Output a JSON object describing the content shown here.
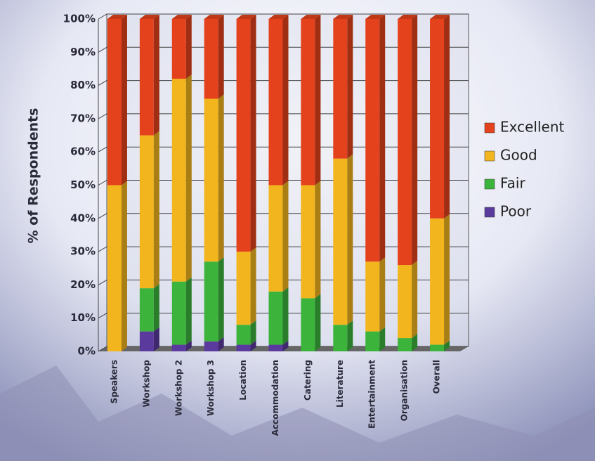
{
  "chart_data": {
    "type": "stacked_bar",
    "y_label": "% of Respondents",
    "categories": [
      "Speakers",
      "Workshop",
      "Workshop 2",
      "Workshop 3",
      "Location",
      "Accommodation",
      "Catering",
      "Literature",
      "Entertainment",
      "Organisation",
      "Overall"
    ],
    "series": [
      {
        "name": "Poor",
        "color": "#5b3a9e",
        "values": [
          0,
          6,
          2,
          3,
          2,
          2,
          0,
          0,
          0,
          0,
          0
        ]
      },
      {
        "name": "Fair",
        "color": "#3cb43c",
        "values": [
          0,
          13,
          19,
          24,
          6,
          16,
          16,
          8,
          6,
          4,
          2
        ]
      },
      {
        "name": "Good",
        "color": "#f2b51e",
        "values": [
          50,
          46,
          61,
          49,
          22,
          32,
          34,
          50,
          21,
          22,
          38
        ]
      },
      {
        "name": "Excellent",
        "color": "#e4421c",
        "values": [
          50,
          35,
          18,
          24,
          70,
          50,
          50,
          42,
          73,
          74,
          60
        ]
      }
    ],
    "ylim": [
      0,
      100
    ],
    "yticks": [
      {
        "value": 0,
        "label": "0%"
      },
      {
        "value": 10,
        "label": "10%"
      },
      {
        "value": 20,
        "label": "20%"
      },
      {
        "value": 30,
        "label": "30%"
      },
      {
        "value": 40,
        "label": "40%"
      },
      {
        "value": 50,
        "label": "50%"
      },
      {
        "value": 60,
        "label": "60%"
      },
      {
        "value": 70,
        "label": "70%"
      },
      {
        "value": 80,
        "label": "80%"
      },
      {
        "value": 90,
        "label": "90%"
      },
      {
        "value": 100,
        "label": "100%"
      }
    ],
    "grid": true,
    "legend": "right"
  }
}
